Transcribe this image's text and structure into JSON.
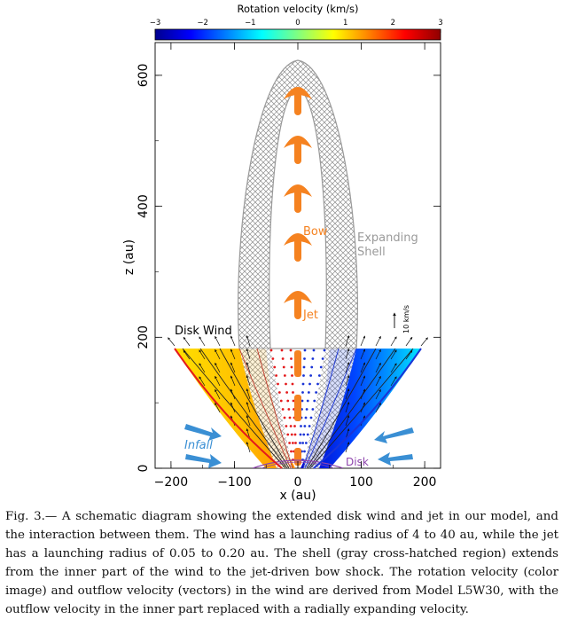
{
  "figure": {
    "colorbar": {
      "title": "Rotation velocity (km/s)",
      "ticks": [
        -3,
        -2,
        -1,
        0,
        1,
        2,
        3
      ],
      "colors": [
        "#00008f",
        "#0000ff",
        "#0080ff",
        "#00ffff",
        "#80ff80",
        "#ffff00",
        "#ff8000",
        "#ff0000",
        "#8f0000"
      ]
    },
    "annotations": {
      "bow": "Bow",
      "jet": "Jet",
      "expanding": "Expanding",
      "shell": "Shell",
      "disk_wind": "Disk Wind",
      "infall": "Infall",
      "disk": "Disk",
      "scale_vector": "10 km/s"
    },
    "colors": {
      "jet": "#f58220",
      "shell": "#9a9a9a",
      "infall": "#3a8fd4",
      "disk": "#8e44ad",
      "wind_left_edge": "#e41a1c",
      "wind_right_edge": "#1a34d6",
      "wind_left_fill": "#ffd400",
      "wind_right_fill": "#1a6cff"
    }
  },
  "chart_data": {
    "type": "diagram",
    "xlabel": "x (au)",
    "ylabel": "z (au)",
    "xlim": [
      -225,
      225
    ],
    "ylim": [
      0,
      650
    ],
    "xticks": [
      -200,
      -100,
      0,
      100,
      200
    ],
    "yticks": [
      0,
      200,
      400,
      600
    ]
  },
  "caption": {
    "text": "Fig. 3.— A schematic diagram showing the extended disk wind and jet in our model, and the interaction between them. The wind has a launching radius of 4 to 40 au, while the jet has a launching radius of 0.05 to 0.20 au. The shell (gray cross-hatched region) extends from the inner part of the wind to the jet-driven bow shock. The rotation velocity (color image) and outflow velocity (vectors) in the wind are derived from Model L5W30, with the outflow velocity in the inner part replaced with a radially expanding velocity."
  }
}
